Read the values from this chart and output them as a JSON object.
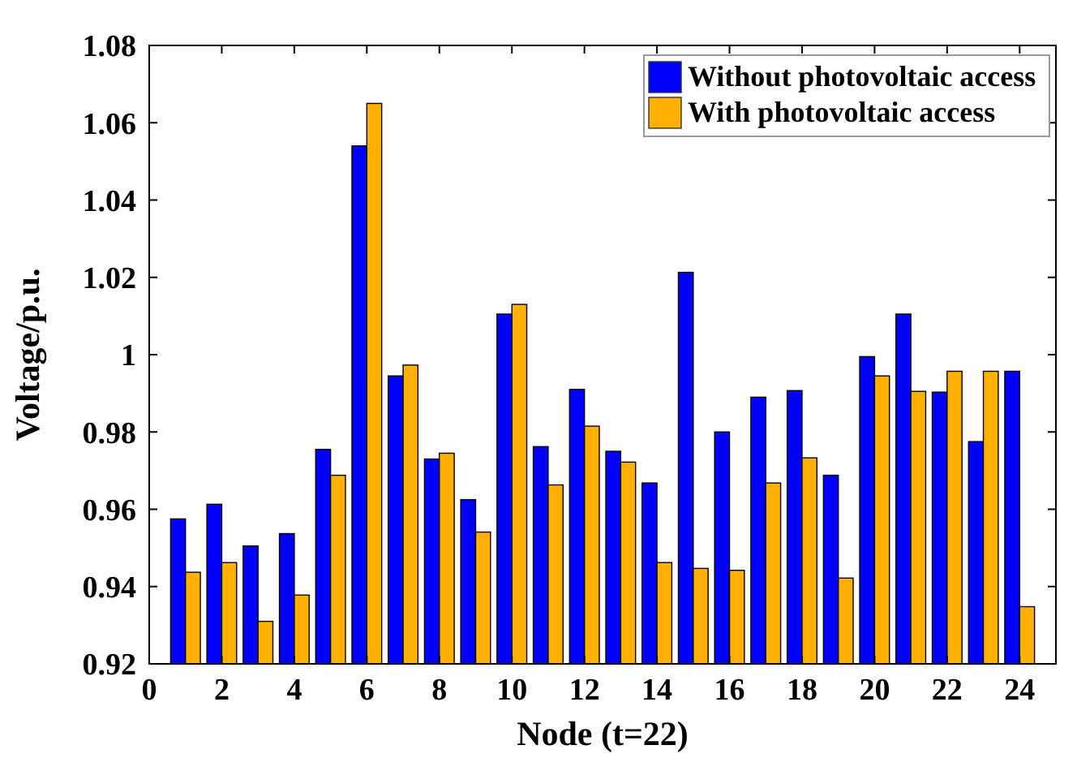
{
  "chart_data": {
    "type": "bar",
    "xlabel": "Node (t=22)",
    "ylabel": "Voltage/p.u.",
    "x": [
      1,
      2,
      3,
      4,
      5,
      6,
      7,
      8,
      9,
      10,
      11,
      12,
      13,
      14,
      15,
      16,
      17,
      18,
      19,
      20,
      21,
      22,
      23,
      24
    ],
    "series": [
      {
        "name": "Without photovoltaic access",
        "color": "#0000ff",
        "values": [
          0.9575,
          0.9613,
          0.9505,
          0.9537,
          0.9755,
          1.054,
          0.9945,
          0.973,
          0.9625,
          1.0105,
          0.9762,
          0.991,
          0.975,
          0.9668,
          1.0213,
          0.98,
          0.989,
          0.9907,
          0.9688,
          0.9995,
          1.0105,
          0.9903,
          0.9775,
          0.9957
        ]
      },
      {
        "name": "With photovoltaic access",
        "color": "#ffb000",
        "values": [
          0.9437,
          0.9462,
          0.931,
          0.9378,
          0.9688,
          1.065,
          0.9973,
          0.9745,
          0.9541,
          1.013,
          0.9663,
          0.9815,
          0.9722,
          0.9462,
          0.9447,
          0.9442,
          0.9668,
          0.9733,
          0.9422,
          0.9945,
          0.9905,
          0.9957,
          0.9957,
          0.9348
        ]
      }
    ],
    "xlim": [
      0,
      25
    ],
    "xticks": [
      0,
      2,
      4,
      6,
      8,
      10,
      12,
      14,
      16,
      18,
      20,
      22,
      24
    ],
    "ylim": [
      0.92,
      1.08
    ],
    "yticks": [
      {
        "value": 0.92,
        "label": "0.92"
      },
      {
        "value": 0.94,
        "label": "0.94"
      },
      {
        "value": 0.96,
        "label": "0.96"
      },
      {
        "value": 0.98,
        "label": "0.98"
      },
      {
        "value": 1,
        "label": "1"
      },
      {
        "value": 1.02,
        "label": "1.02"
      },
      {
        "value": 1.04,
        "label": "1.04"
      },
      {
        "value": 1.06,
        "label": "1.06"
      },
      {
        "value": 1.08,
        "label": "1.08"
      }
    ],
    "legend": "top right",
    "grid": false
  }
}
